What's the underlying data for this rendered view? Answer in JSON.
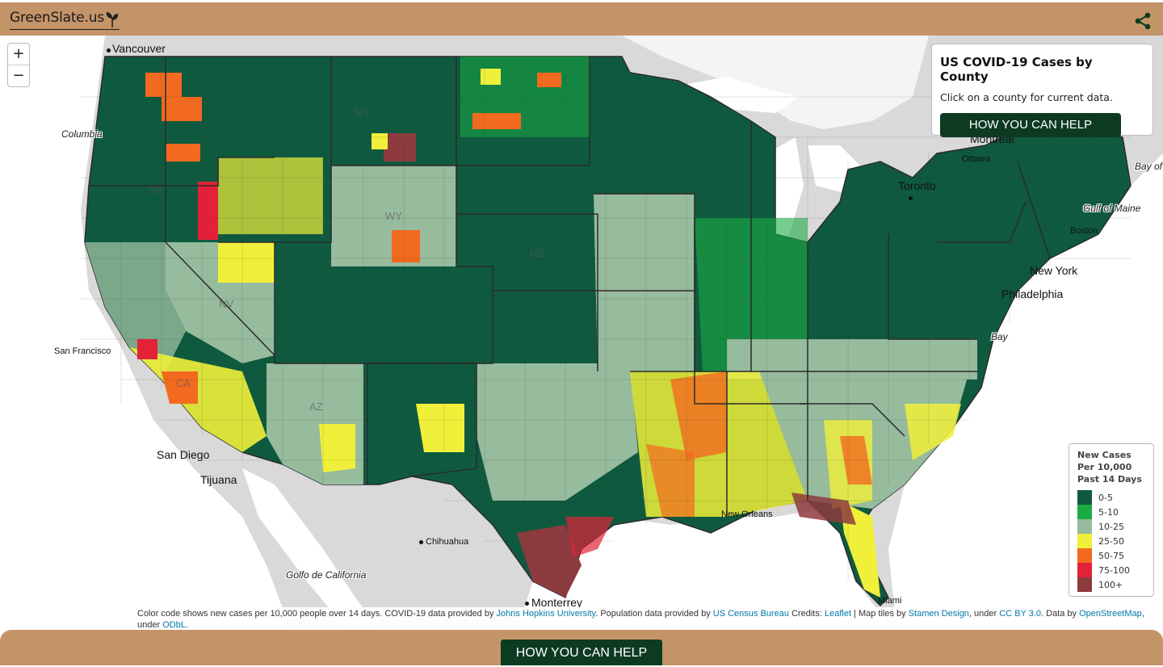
{
  "header": {
    "logo_text": "GreenSlate.us",
    "share_icon": "share-icon"
  },
  "map": {
    "zoom_in_label": "+",
    "zoom_out_label": "−",
    "city_labels": [
      "Vancouver",
      "Montreal",
      "Ottawa",
      "Toronto",
      "Boston",
      "New York",
      "Philadelphia",
      "San Francisco",
      "San Diego",
      "Tijuana",
      "Chihuahua",
      "Monterrey",
      "New Orleans",
      "Miami"
    ],
    "water_labels": [
      "Columbia",
      "Gulf of Maine",
      "Golfo de California",
      "Bay of",
      "Bay"
    ],
    "state_labels": [
      "OR",
      "NV",
      "CA",
      "AZ",
      "WY",
      "MT",
      "NE"
    ],
    "colors": {
      "land": "#d9d9d9",
      "water": "#ffffff",
      "border": "#2b2b2b"
    }
  },
  "info_panel": {
    "title": "US COVID-19 Cases by County",
    "subtitle": "Click on a county for current data.",
    "button_label": "HOW YOU CAN HELP"
  },
  "legend": {
    "title": "New Cases Per 10,000 Past 14 Days",
    "items": [
      {
        "label": "0-5",
        "color": "#0f5a3f"
      },
      {
        "label": "5-10",
        "color": "#1aab45"
      },
      {
        "label": "10-25",
        "color": "#97bb9d"
      },
      {
        "label": "25-50",
        "color": "#f0f03a"
      },
      {
        "label": "50-75",
        "color": "#f26a1f"
      },
      {
        "label": "75-100",
        "color": "#e3223a"
      },
      {
        "label": "100+",
        "color": "#8d3b3f"
      }
    ]
  },
  "attribution": {
    "text1": "Color code shows new cases per 10,000 people over 14 days. COVID-19 data provided by ",
    "link1": "Johns Hopkins University",
    "text2": ". Population data provided by ",
    "link2": "US Census Bureau",
    "text3": " Credits: ",
    "link3": "Leaflet",
    "text4": " | Map tiles by ",
    "link4": "Stamen Design",
    "text5": ", under ",
    "link5": "CC BY 3.0",
    "text6": ". Data by ",
    "link6": "OpenStreetMap",
    "text7": ", under ",
    "link7": "ODbL",
    "text8": "."
  },
  "footer": {
    "button_label": "HOW YOU CAN HELP"
  }
}
